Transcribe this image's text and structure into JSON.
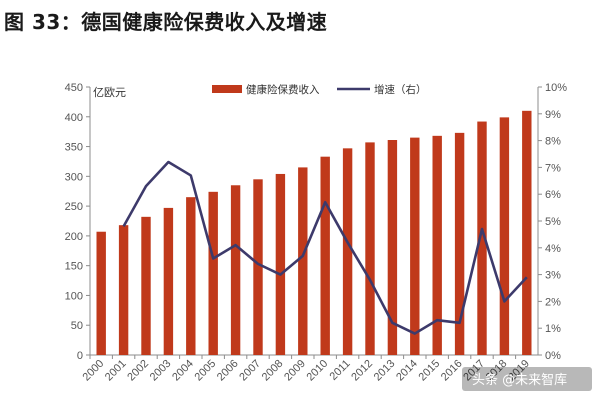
{
  "figure_title": "图 33：德国健康险保费收入及增速",
  "watermark": "头条 @未来智库",
  "chart_data": {
    "type": "bar+line",
    "categories": [
      "2000",
      "2001",
      "2002",
      "2003",
      "2004",
      "2005",
      "2006",
      "2007",
      "2008",
      "2009",
      "2010",
      "2011",
      "2012",
      "2013",
      "2014",
      "2015",
      "2016",
      "2017",
      "2018",
      "2019"
    ],
    "series": [
      {
        "name": "健康险保费收入",
        "type": "bar",
        "axis": "left",
        "color": "#c0391b",
        "values": [
          207,
          218,
          232,
          247,
          265,
          274,
          285,
          295,
          304,
          315,
          333,
          347,
          357,
          361,
          365,
          368,
          373,
          392,
          399,
          410
        ]
      },
      {
        "name": "增速（右）",
        "type": "line",
        "axis": "right",
        "color": "#3d3a6b",
        "values": [
          null,
          4.8,
          6.3,
          7.2,
          6.7,
          3.6,
          4.1,
          3.4,
          3.0,
          3.7,
          5.7,
          4.2,
          2.8,
          1.2,
          0.8,
          1.3,
          1.2,
          4.7,
          2.0,
          2.9
        ]
      }
    ],
    "ylabel_left": "亿欧元",
    "ylim_left": [
      0,
      450
    ],
    "yticks_left": [
      "0",
      "50",
      "100",
      "150",
      "200",
      "250",
      "300",
      "350",
      "400",
      "450"
    ],
    "ylim_right": [
      0,
      10
    ],
    "yticks_right": [
      "0%",
      "1%",
      "2%",
      "3%",
      "4%",
      "5%",
      "6%",
      "7%",
      "8%",
      "9%",
      "10%"
    ],
    "legend_position": "top",
    "grid": false
  }
}
